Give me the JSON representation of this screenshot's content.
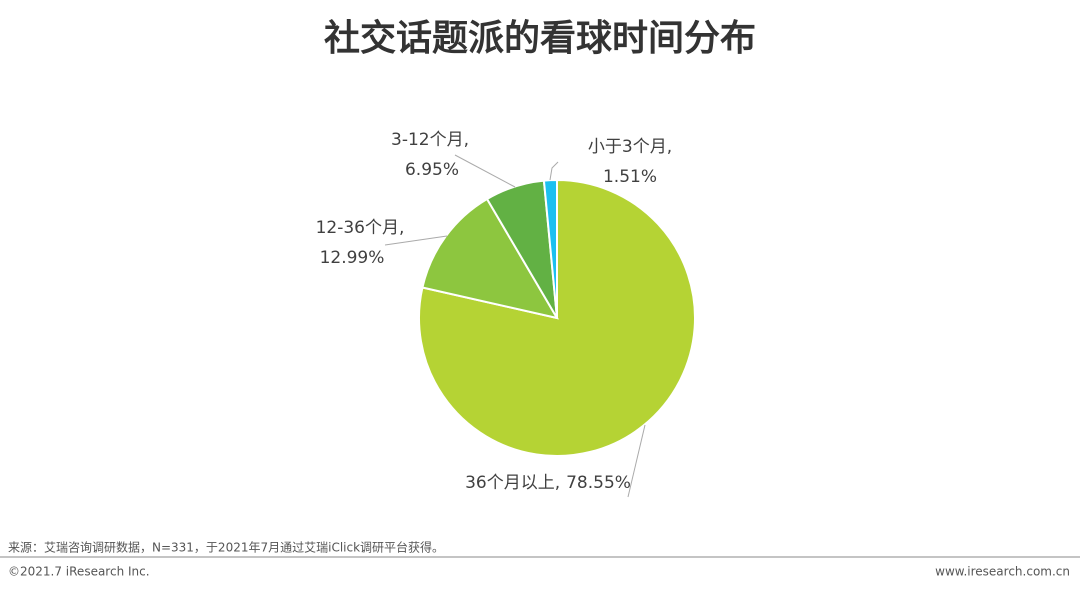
{
  "chart_data": {
    "type": "pie",
    "title": "社交话题派的看球时间分布",
    "categories": [
      "36个月以上,",
      "12-36个月,",
      "3-12个月,",
      "小于3个月,"
    ],
    "values": [
      78.55,
      12.99,
      6.95,
      1.51
    ],
    "value_labels": [
      "78.55%",
      "12.99%",
      "6.95%",
      "1.51%"
    ],
    "colors": [
      "#b5d334",
      "#8dc63f",
      "#62b144",
      "#1cc0ef"
    ]
  },
  "footer": {
    "source": "来源：艾瑞咨询调研数据，N=331，于2021年7月通过艾瑞iClick调研平台获得。",
    "copyright": "©2021.7 iResearch Inc.",
    "url": "www.iresearch.com.cn"
  }
}
